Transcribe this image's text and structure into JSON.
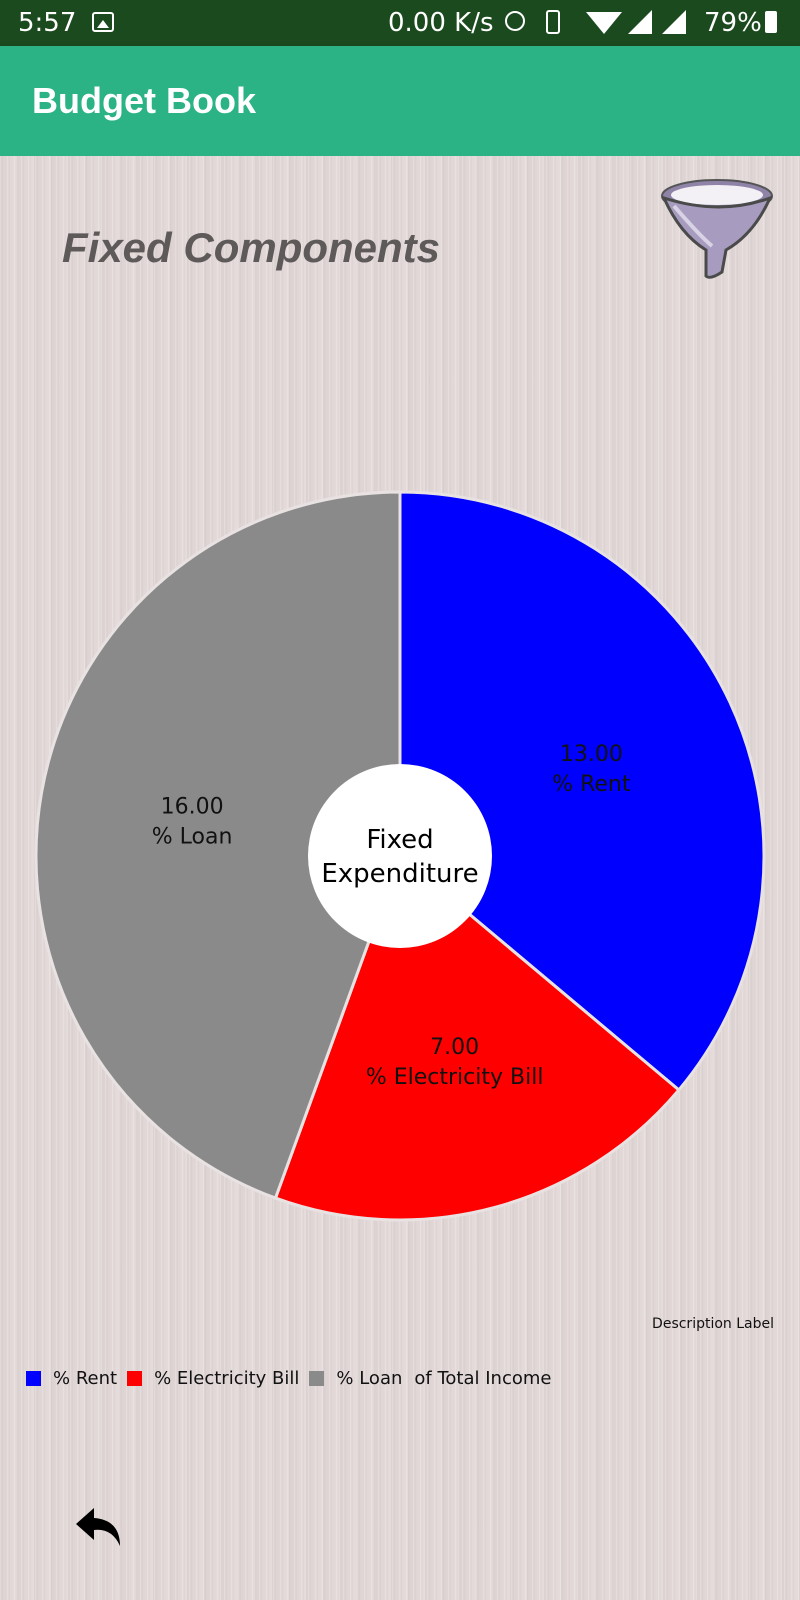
{
  "status_bar": {
    "time": "5:57",
    "network_speed": "0.00 K/s",
    "battery": "79%",
    "icons": [
      "image-icon",
      "alarm-icon",
      "vibrate-icon",
      "wifi-icon",
      "signal-icon",
      "signal-icon",
      "battery-icon"
    ]
  },
  "app_bar": {
    "title": "Budget Book",
    "color": "#2bb386"
  },
  "screen": {
    "section_title": "Fixed Components",
    "filter_icon": "filter-funnel-icon",
    "back_icon": "back-arrow-icon",
    "description_label": "Description Label",
    "legend_suffix": "of Total Income"
  },
  "chart_data": {
    "type": "pie",
    "center_text": [
      "Fixed",
      "Expenditure"
    ],
    "slices": [
      {
        "label": "%  Rent",
        "value": 13.0,
        "display": "13.00",
        "color": "#0000ff"
      },
      {
        "label": "%  Electricity Bill",
        "value": 7.0,
        "display": "7.00",
        "color": "#ff0000"
      },
      {
        "label": "%  Loan",
        "value": 16.0,
        "display": "16.00",
        "color": "#8a8a8a"
      }
    ],
    "legend_placement": "bottom-left"
  }
}
